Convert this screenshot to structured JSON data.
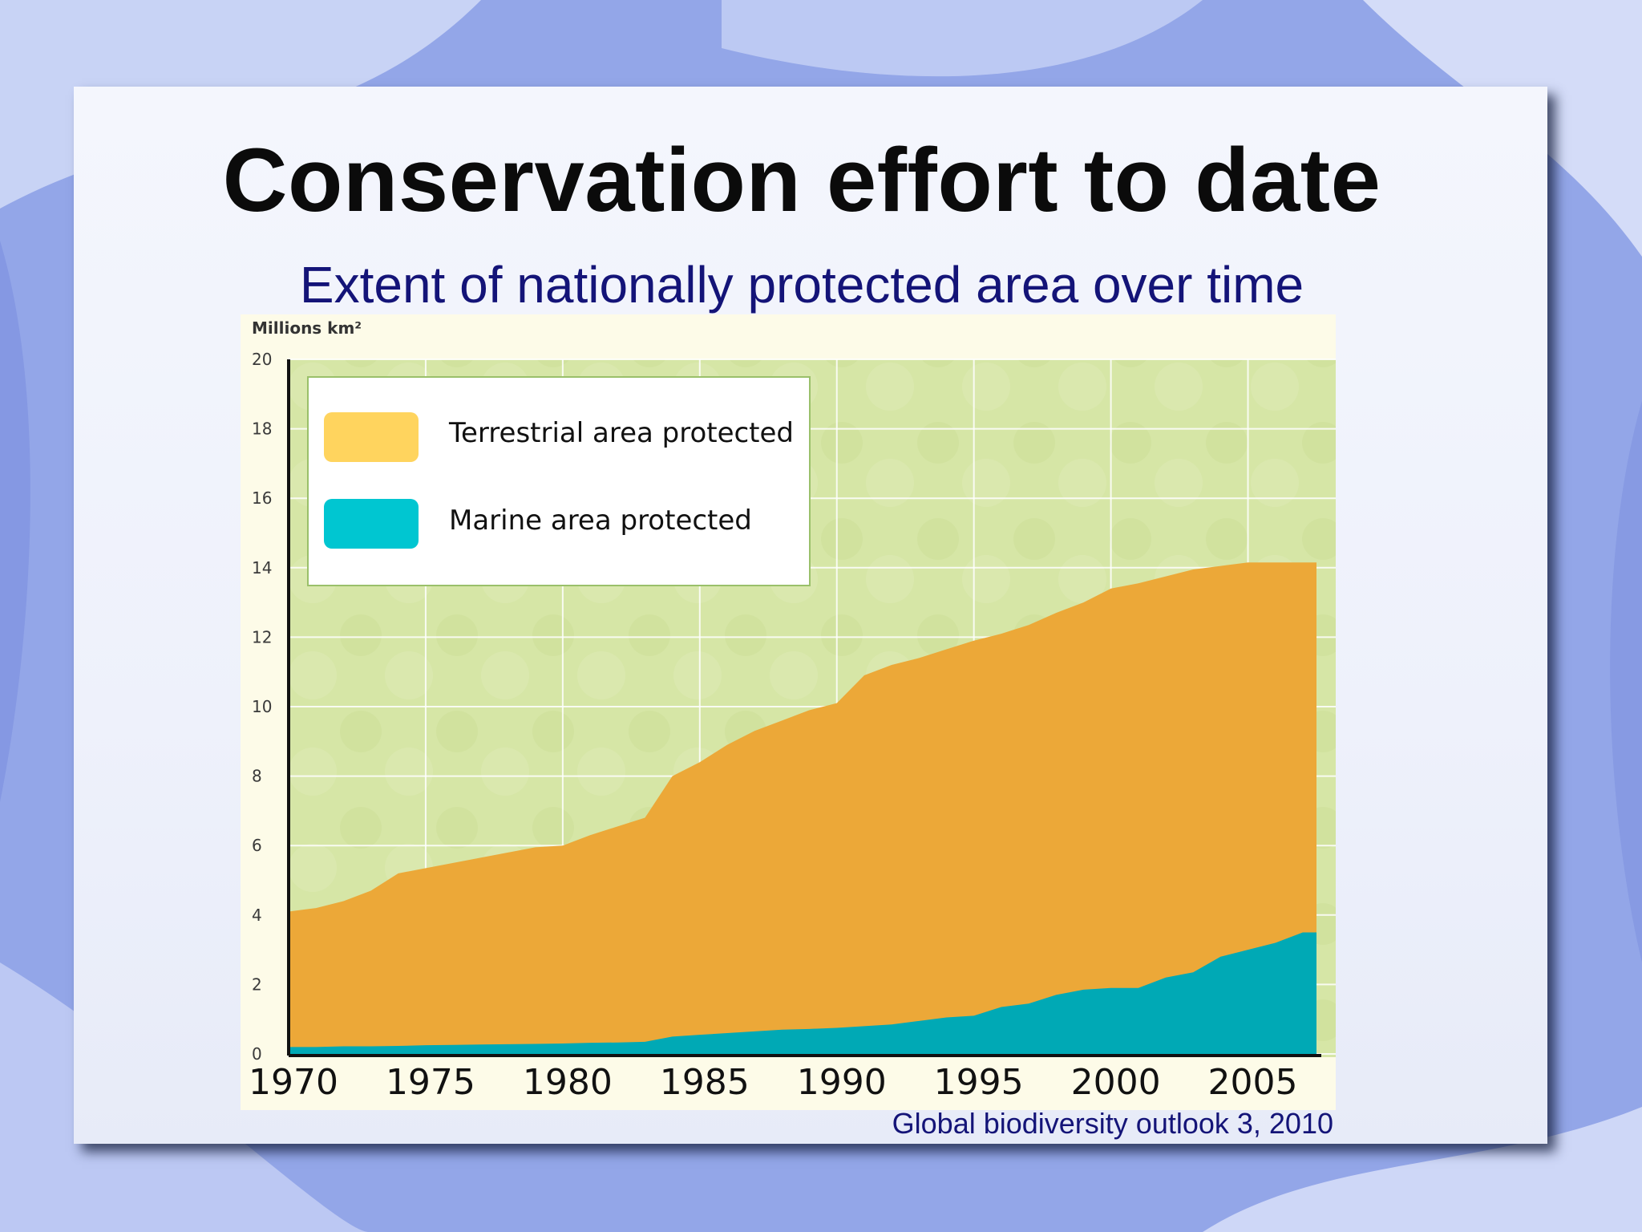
{
  "slide": {
    "title": "Conservation effort to date",
    "subtitle": "Extent of nationally protected area over time",
    "source": "Global biodiversity outlook 3, 2010"
  },
  "colors": {
    "terrestrial": "#eca838",
    "terrestrial_legend": "#ffd45e",
    "marine": "#00a9b5",
    "marine_legend": "#00c6d1",
    "plot_background": "#d6e6a6",
    "text_title": "#0b0b0b",
    "text_subtitle": "#141478"
  },
  "chart_data": {
    "type": "area",
    "stacked": true,
    "ylabel": "Millions km²",
    "ylim": [
      0,
      20
    ],
    "yticks": [
      "0",
      "2",
      "4",
      "6",
      "8",
      "10",
      "12",
      "14",
      "16",
      "18",
      "20"
    ],
    "xticks": [
      "1970",
      "1975",
      "1980",
      "1985",
      "1990",
      "1995",
      "2000",
      "2005"
    ],
    "xlim": [
      1970,
      2007.5
    ],
    "grid": true,
    "legend_position": "top-left",
    "legend": [
      {
        "label": "Terrestrial area protected",
        "series": "terrestrial"
      },
      {
        "label": "Marine area protected",
        "series": "marine"
      }
    ],
    "x": [
      1970,
      1971,
      1972,
      1973,
      1974,
      1975,
      1976,
      1977,
      1978,
      1979,
      1980,
      1981,
      1982,
      1983,
      1984,
      1985,
      1986,
      1987,
      1988,
      1989,
      1990,
      1991,
      1992,
      1993,
      1994,
      1995,
      1996,
      1997,
      1998,
      1999,
      2000,
      2001,
      2002,
      2003,
      2004,
      2005,
      2006,
      2007
    ],
    "series": [
      {
        "id": "marine",
        "values": [
          0.2,
          0.2,
          0.22,
          0.22,
          0.23,
          0.25,
          0.26,
          0.27,
          0.28,
          0.29,
          0.3,
          0.32,
          0.33,
          0.35,
          0.5,
          0.55,
          0.6,
          0.65,
          0.7,
          0.72,
          0.75,
          0.8,
          0.85,
          0.95,
          1.05,
          1.1,
          1.35,
          1.45,
          1.7,
          1.85,
          1.9,
          1.9,
          2.2,
          2.35,
          2.8,
          3.0,
          3.2,
          3.5
        ]
      },
      {
        "id": "total",
        "values": [
          4.1,
          4.2,
          4.4,
          4.7,
          5.2,
          5.35,
          5.5,
          5.65,
          5.8,
          5.95,
          6.0,
          6.3,
          6.55,
          6.8,
          8.0,
          8.4,
          8.9,
          9.3,
          9.6,
          9.9,
          10.1,
          10.9,
          11.2,
          11.4,
          11.65,
          11.9,
          12.1,
          12.35,
          12.7,
          13.0,
          13.4,
          13.55,
          13.75,
          13.95,
          14.05,
          14.15,
          14.15,
          14.15
        ]
      }
    ]
  }
}
